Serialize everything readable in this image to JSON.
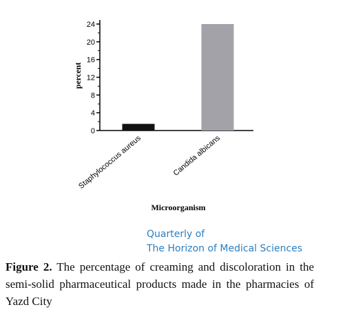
{
  "chart_data": {
    "type": "bar",
    "categories": [
      "Staphylococcus aureus",
      "Candida albicans"
    ],
    "series": [
      {
        "name": null,
        "colors": [
          "#111111",
          "#a3a2a9"
        ],
        "values": [
          1.5,
          24
        ]
      }
    ],
    "xlabel": "Microorganism",
    "ylabel": "percent",
    "ylim": [
      0,
      24
    ],
    "yticks": [
      0,
      4,
      8,
      12,
      16,
      20,
      24
    ],
    "yminor_ticks": [
      2,
      6,
      10,
      14,
      18,
      22
    ]
  },
  "journal": {
    "line1": "Quarterly of",
    "line2": "The Horizon of Medical Sciences"
  },
  "caption": {
    "label": "Figure 2.",
    "text": " The percentage of creaming and discoloration in the semi-solid pharmaceutical products made in the pharmacies of Yazd City"
  }
}
